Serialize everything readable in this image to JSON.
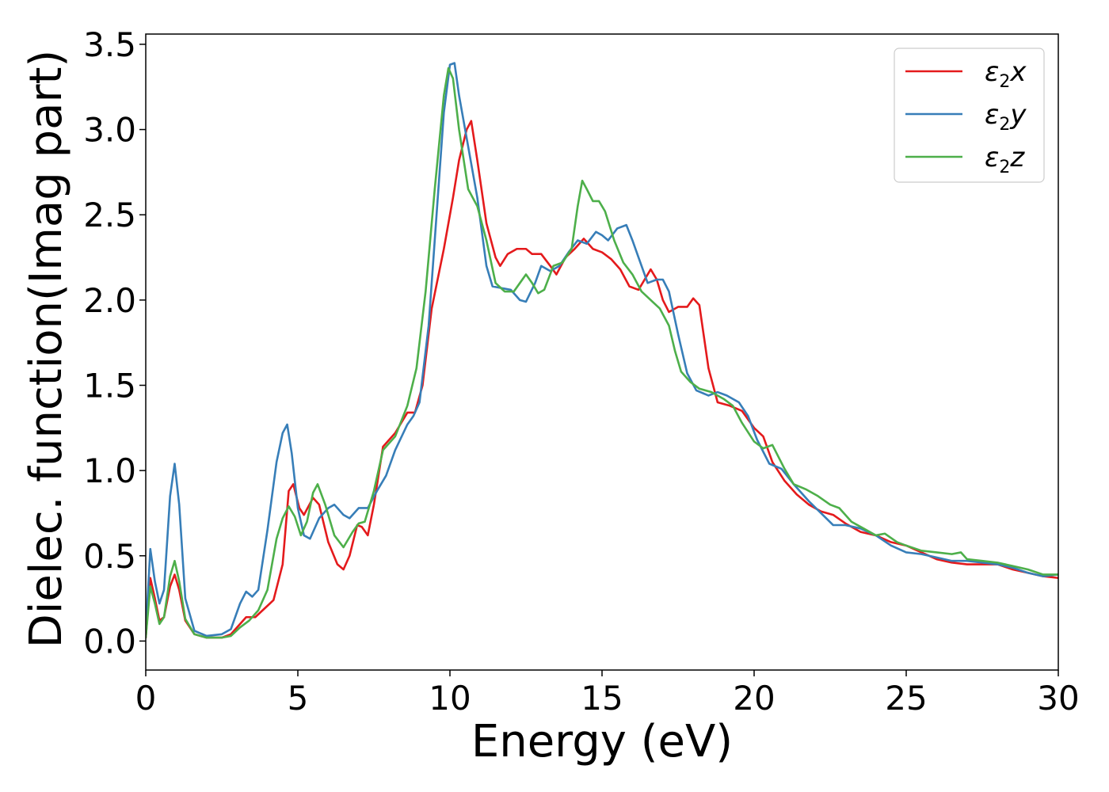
{
  "chart_data": {
    "type": "line",
    "title": "",
    "xlabel": "Energy (eV)",
    "ylabel": "Dielec. function(Imag part)",
    "xlim": [
      0,
      30
    ],
    "ylim": [
      -0.17,
      3.56
    ],
    "xticks": [
      0,
      5,
      10,
      15,
      20,
      25,
      30
    ],
    "yticks": [
      0.0,
      0.5,
      1.0,
      1.5,
      2.0,
      2.5,
      3.0,
      3.5
    ],
    "xtick_labels": [
      "0",
      "5",
      "10",
      "15",
      "20",
      "25",
      "30"
    ],
    "ytick_labels": [
      "0.0",
      "0.5",
      "1.0",
      "1.5",
      "2.0",
      "2.5",
      "3.0",
      "3.5"
    ],
    "grid": false,
    "legend": "top-right",
    "series": [
      {
        "name": "ε2x",
        "symbol": "ε",
        "subscript": "2",
        "axis": "x",
        "color": "#e41a1c",
        "points": [
          [
            0,
            0.02
          ],
          [
            0.15,
            0.37
          ],
          [
            0.3,
            0.25
          ],
          [
            0.45,
            0.12
          ],
          [
            0.6,
            0.14
          ],
          [
            0.8,
            0.32
          ],
          [
            0.95,
            0.39
          ],
          [
            1.1,
            0.3
          ],
          [
            1.3,
            0.12
          ],
          [
            1.6,
            0.04
          ],
          [
            2.0,
            0.02
          ],
          [
            2.5,
            0.02
          ],
          [
            2.8,
            0.04
          ],
          [
            3.1,
            0.1
          ],
          [
            3.3,
            0.14
          ],
          [
            3.6,
            0.14
          ],
          [
            3.9,
            0.19
          ],
          [
            4.2,
            0.24
          ],
          [
            4.5,
            0.45
          ],
          [
            4.7,
            0.88
          ],
          [
            4.85,
            0.92
          ],
          [
            5.05,
            0.78
          ],
          [
            5.2,
            0.74
          ],
          [
            5.5,
            0.84
          ],
          [
            5.7,
            0.8
          ],
          [
            6.0,
            0.58
          ],
          [
            6.3,
            0.45
          ],
          [
            6.5,
            0.42
          ],
          [
            6.7,
            0.5
          ],
          [
            6.95,
            0.68
          ],
          [
            7.1,
            0.67
          ],
          [
            7.3,
            0.62
          ],
          [
            7.5,
            0.8
          ],
          [
            7.8,
            1.14
          ],
          [
            8.2,
            1.22
          ],
          [
            8.6,
            1.34
          ],
          [
            8.85,
            1.34
          ],
          [
            9.1,
            1.5
          ],
          [
            9.4,
            1.95
          ],
          [
            9.8,
            2.3
          ],
          [
            10.1,
            2.6
          ],
          [
            10.3,
            2.82
          ],
          [
            10.55,
            3.0
          ],
          [
            10.7,
            3.05
          ],
          [
            10.9,
            2.82
          ],
          [
            11.2,
            2.45
          ],
          [
            11.5,
            2.25
          ],
          [
            11.65,
            2.2
          ],
          [
            11.9,
            2.27
          ],
          [
            12.2,
            2.3
          ],
          [
            12.5,
            2.3
          ],
          [
            12.7,
            2.27
          ],
          [
            13.0,
            2.27
          ],
          [
            13.3,
            2.2
          ],
          [
            13.5,
            2.15
          ],
          [
            13.8,
            2.25
          ],
          [
            14.1,
            2.3
          ],
          [
            14.4,
            2.36
          ],
          [
            14.7,
            2.3
          ],
          [
            15.0,
            2.28
          ],
          [
            15.3,
            2.24
          ],
          [
            15.6,
            2.18
          ],
          [
            15.9,
            2.08
          ],
          [
            16.2,
            2.06
          ],
          [
            16.4,
            2.12
          ],
          [
            16.6,
            2.18
          ],
          [
            16.8,
            2.12
          ],
          [
            17.0,
            2.0
          ],
          [
            17.2,
            1.93
          ],
          [
            17.5,
            1.96
          ],
          [
            17.8,
            1.96
          ],
          [
            18.0,
            2.01
          ],
          [
            18.2,
            1.97
          ],
          [
            18.5,
            1.6
          ],
          [
            18.8,
            1.4
          ],
          [
            19.2,
            1.38
          ],
          [
            19.6,
            1.35
          ],
          [
            20.0,
            1.25
          ],
          [
            20.3,
            1.2
          ],
          [
            20.6,
            1.05
          ],
          [
            21.0,
            0.94
          ],
          [
            21.4,
            0.86
          ],
          [
            21.8,
            0.8
          ],
          [
            22.2,
            0.76
          ],
          [
            22.6,
            0.74
          ],
          [
            23.0,
            0.69
          ],
          [
            23.5,
            0.64
          ],
          [
            24.0,
            0.62
          ],
          [
            24.5,
            0.58
          ],
          [
            25.0,
            0.56
          ],
          [
            25.5,
            0.52
          ],
          [
            26.0,
            0.48
          ],
          [
            26.5,
            0.46
          ],
          [
            27.0,
            0.45
          ],
          [
            27.5,
            0.45
          ],
          [
            28.0,
            0.45
          ],
          [
            28.5,
            0.42
          ],
          [
            29.0,
            0.4
          ],
          [
            29.5,
            0.38
          ],
          [
            30.0,
            0.37
          ]
        ]
      },
      {
        "name": "ε2y",
        "symbol": "ε",
        "subscript": "2",
        "axis": "y",
        "color": "#377eb8",
        "points": [
          [
            0,
            0.05
          ],
          [
            0.15,
            0.54
          ],
          [
            0.3,
            0.35
          ],
          [
            0.45,
            0.22
          ],
          [
            0.6,
            0.3
          ],
          [
            0.8,
            0.85
          ],
          [
            0.95,
            1.04
          ],
          [
            1.1,
            0.8
          ],
          [
            1.3,
            0.25
          ],
          [
            1.6,
            0.06
          ],
          [
            2.0,
            0.03
          ],
          [
            2.5,
            0.04
          ],
          [
            2.8,
            0.07
          ],
          [
            3.1,
            0.22
          ],
          [
            3.3,
            0.29
          ],
          [
            3.5,
            0.26
          ],
          [
            3.7,
            0.3
          ],
          [
            4.0,
            0.65
          ],
          [
            4.3,
            1.05
          ],
          [
            4.5,
            1.22
          ],
          [
            4.65,
            1.27
          ],
          [
            4.8,
            1.1
          ],
          [
            5.0,
            0.78
          ],
          [
            5.2,
            0.62
          ],
          [
            5.4,
            0.6
          ],
          [
            5.7,
            0.72
          ],
          [
            6.0,
            0.78
          ],
          [
            6.2,
            0.8
          ],
          [
            6.5,
            0.74
          ],
          [
            6.7,
            0.72
          ],
          [
            7.0,
            0.78
          ],
          [
            7.3,
            0.78
          ],
          [
            7.6,
            0.88
          ],
          [
            7.9,
            0.97
          ],
          [
            8.2,
            1.12
          ],
          [
            8.6,
            1.27
          ],
          [
            8.8,
            1.32
          ],
          [
            9.0,
            1.4
          ],
          [
            9.3,
            1.85
          ],
          [
            9.6,
            2.6
          ],
          [
            9.8,
            3.1
          ],
          [
            10.0,
            3.38
          ],
          [
            10.15,
            3.39
          ],
          [
            10.3,
            3.2
          ],
          [
            10.6,
            2.9
          ],
          [
            10.9,
            2.6
          ],
          [
            11.2,
            2.2
          ],
          [
            11.4,
            2.08
          ],
          [
            11.7,
            2.07
          ],
          [
            12.0,
            2.06
          ],
          [
            12.3,
            2.0
          ],
          [
            12.5,
            1.99
          ],
          [
            12.8,
            2.1
          ],
          [
            13.0,
            2.2
          ],
          [
            13.3,
            2.17
          ],
          [
            13.6,
            2.2
          ],
          [
            13.9,
            2.28
          ],
          [
            14.2,
            2.35
          ],
          [
            14.5,
            2.33
          ],
          [
            14.8,
            2.4
          ],
          [
            15.0,
            2.38
          ],
          [
            15.2,
            2.35
          ],
          [
            15.5,
            2.42
          ],
          [
            15.8,
            2.44
          ],
          [
            16.0,
            2.35
          ],
          [
            16.2,
            2.25
          ],
          [
            16.5,
            2.1
          ],
          [
            16.8,
            2.12
          ],
          [
            17.0,
            2.12
          ],
          [
            17.2,
            2.05
          ],
          [
            17.5,
            1.8
          ],
          [
            17.8,
            1.57
          ],
          [
            18.1,
            1.47
          ],
          [
            18.5,
            1.44
          ],
          [
            18.8,
            1.46
          ],
          [
            19.1,
            1.44
          ],
          [
            19.5,
            1.4
          ],
          [
            19.8,
            1.32
          ],
          [
            20.1,
            1.18
          ],
          [
            20.5,
            1.04
          ],
          [
            20.9,
            1.01
          ],
          [
            21.3,
            0.92
          ],
          [
            21.8,
            0.82
          ],
          [
            22.2,
            0.75
          ],
          [
            22.6,
            0.68
          ],
          [
            23.0,
            0.68
          ],
          [
            23.5,
            0.66
          ],
          [
            24.0,
            0.62
          ],
          [
            24.5,
            0.56
          ],
          [
            25.0,
            0.52
          ],
          [
            25.5,
            0.51
          ],
          [
            26.0,
            0.49
          ],
          [
            26.5,
            0.47
          ],
          [
            27.0,
            0.47
          ],
          [
            27.5,
            0.46
          ],
          [
            28.0,
            0.45
          ],
          [
            28.5,
            0.43
          ],
          [
            29.0,
            0.4
          ],
          [
            29.5,
            0.38
          ],
          [
            30.0,
            0.39
          ]
        ]
      },
      {
        "name": "ε2z",
        "symbol": "ε",
        "subscript": "2",
        "axis": "z",
        "color": "#4daf4a",
        "points": [
          [
            0,
            0.02
          ],
          [
            0.15,
            0.32
          ],
          [
            0.3,
            0.22
          ],
          [
            0.45,
            0.1
          ],
          [
            0.6,
            0.14
          ],
          [
            0.8,
            0.38
          ],
          [
            0.95,
            0.47
          ],
          [
            1.1,
            0.35
          ],
          [
            1.3,
            0.13
          ],
          [
            1.6,
            0.04
          ],
          [
            2.0,
            0.02
          ],
          [
            2.5,
            0.02
          ],
          [
            2.8,
            0.03
          ],
          [
            3.1,
            0.08
          ],
          [
            3.4,
            0.12
          ],
          [
            3.7,
            0.18
          ],
          [
            4.0,
            0.3
          ],
          [
            4.3,
            0.6
          ],
          [
            4.5,
            0.72
          ],
          [
            4.7,
            0.79
          ],
          [
            4.9,
            0.73
          ],
          [
            5.1,
            0.62
          ],
          [
            5.3,
            0.7
          ],
          [
            5.5,
            0.87
          ],
          [
            5.65,
            0.92
          ],
          [
            5.9,
            0.8
          ],
          [
            6.2,
            0.62
          ],
          [
            6.5,
            0.55
          ],
          [
            6.8,
            0.64
          ],
          [
            7.0,
            0.69
          ],
          [
            7.2,
            0.7
          ],
          [
            7.5,
            0.88
          ],
          [
            7.8,
            1.12
          ],
          [
            8.2,
            1.2
          ],
          [
            8.6,
            1.38
          ],
          [
            8.9,
            1.6
          ],
          [
            9.2,
            2.05
          ],
          [
            9.5,
            2.65
          ],
          [
            9.8,
            3.2
          ],
          [
            9.95,
            3.36
          ],
          [
            10.1,
            3.3
          ],
          [
            10.3,
            3.0
          ],
          [
            10.6,
            2.65
          ],
          [
            10.9,
            2.55
          ],
          [
            11.2,
            2.35
          ],
          [
            11.5,
            2.1
          ],
          [
            11.8,
            2.05
          ],
          [
            12.1,
            2.05
          ],
          [
            12.3,
            2.1
          ],
          [
            12.5,
            2.15
          ],
          [
            12.7,
            2.1
          ],
          [
            12.9,
            2.04
          ],
          [
            13.1,
            2.06
          ],
          [
            13.4,
            2.2
          ],
          [
            13.7,
            2.22
          ],
          [
            14.0,
            2.3
          ],
          [
            14.2,
            2.55
          ],
          [
            14.35,
            2.7
          ],
          [
            14.5,
            2.65
          ],
          [
            14.7,
            2.58
          ],
          [
            14.9,
            2.58
          ],
          [
            15.1,
            2.52
          ],
          [
            15.4,
            2.35
          ],
          [
            15.7,
            2.22
          ],
          [
            16.0,
            2.15
          ],
          [
            16.3,
            2.05
          ],
          [
            16.6,
            2.0
          ],
          [
            16.9,
            1.95
          ],
          [
            17.2,
            1.85
          ],
          [
            17.4,
            1.7
          ],
          [
            17.6,
            1.58
          ],
          [
            17.9,
            1.52
          ],
          [
            18.2,
            1.48
          ],
          [
            18.6,
            1.46
          ],
          [
            19.0,
            1.42
          ],
          [
            19.3,
            1.38
          ],
          [
            19.6,
            1.28
          ],
          [
            20.0,
            1.17
          ],
          [
            20.3,
            1.13
          ],
          [
            20.6,
            1.15
          ],
          [
            21.0,
            1.01
          ],
          [
            21.3,
            0.92
          ],
          [
            21.7,
            0.89
          ],
          [
            22.1,
            0.85
          ],
          [
            22.5,
            0.8
          ],
          [
            22.8,
            0.78
          ],
          [
            23.2,
            0.7
          ],
          [
            23.6,
            0.66
          ],
          [
            24.0,
            0.62
          ],
          [
            24.3,
            0.63
          ],
          [
            24.7,
            0.58
          ],
          [
            25.0,
            0.56
          ],
          [
            25.5,
            0.53
          ],
          [
            26.0,
            0.52
          ],
          [
            26.5,
            0.51
          ],
          [
            26.8,
            0.52
          ],
          [
            27.0,
            0.48
          ],
          [
            27.5,
            0.47
          ],
          [
            28.0,
            0.46
          ],
          [
            28.5,
            0.44
          ],
          [
            29.0,
            0.42
          ],
          [
            29.5,
            0.39
          ],
          [
            30.0,
            0.39
          ]
        ]
      }
    ]
  }
}
